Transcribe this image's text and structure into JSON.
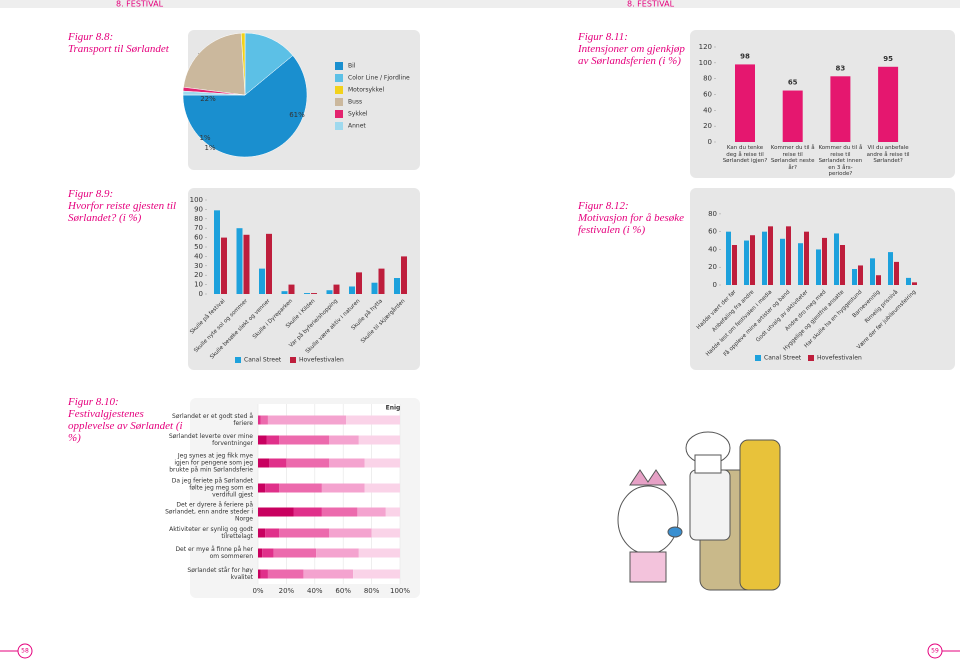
{
  "header": {
    "left": "8. FESTIVAL",
    "right": "8. FESTIVAL"
  },
  "page_numbers": [
    "58",
    "59"
  ],
  "chart_data": [
    {
      "type": "pie",
      "figure": "Figur 8.8:",
      "title": "Transport til Sørlandet",
      "categories": [
        "Bil",
        "Color Line / Fjordline",
        "Motorsykkel",
        "Buss",
        "Sykkel",
        "Annet"
      ],
      "values": [
        61,
        14,
        1,
        22,
        1,
        1
      ],
      "value_labels": [
        "61%",
        "14%",
        "1%",
        "22%",
        "1%",
        "1%"
      ],
      "colors": [
        "#1a8fcf",
        "#5cc0e6",
        "#f2d21b",
        "#cbb89d",
        "#e3246f",
        "#9fd9ee"
      ]
    },
    {
      "type": "bar",
      "figure": "Figur 8.11:",
      "title": "Intensjoner om gjenkjøp av Sørlandsferien (i %)",
      "categories": [
        "Kan du tenke deg å reise til Sørlandet igjen?",
        "Kommer du til å reise til Sørlandet neste år?",
        "Kommer du til å reise til Sørlandet innen en 3 års-periode?",
        "Vil du anbefale andre å reise til Sørlandet?"
      ],
      "values": [
        98,
        65,
        83,
        95
      ],
      "color": "#e5176f",
      "ylim": [
        0,
        120
      ],
      "yticks": [
        0,
        20,
        40,
        60,
        80,
        100,
        120
      ]
    },
    {
      "type": "grouped-bar",
      "figure": "Figur 8.9:",
      "title": "Hvorfor reiste gjesten til Sørlandet? (i %)",
      "categories": [
        "Skulle på festival",
        "Skulle nyte sol og sommer",
        "Skulle besøke slekt og venner",
        "Skulle i Dyreparken",
        "Skulle i Kilden",
        "Var på byferie/shopping",
        "Skulle være aktiv i naturen",
        "Skulle på hytta",
        "Skulle til skjærgården"
      ],
      "series": [
        {
          "name": "Canal Street",
          "color": "#1da1dc",
          "values": [
            89,
            70,
            27,
            3,
            1,
            4,
            8,
            12,
            17
          ]
        },
        {
          "name": "Hovefestivalen",
          "color": "#be1e3c",
          "values": [
            60,
            63,
            64,
            10,
            1,
            10,
            23,
            27,
            40
          ]
        }
      ],
      "ylim": [
        0,
        100
      ],
      "yticks": [
        0,
        10,
        20,
        30,
        40,
        50,
        60,
        70,
        80,
        90,
        100
      ]
    },
    {
      "type": "grouped-bar",
      "figure": "Figur 8.12:",
      "title": "Motivasjon for å besøke festivalen (i %)",
      "categories": [
        "Hadde vært der før",
        "Anbefaling fra andre",
        "Hadde lest om festivalen i media",
        "Få oppleve mine artister og band",
        "Godt utvalg av aktiviteter",
        "Andre dro meg med",
        "Hyggelige og gjestfrie ansatte",
        "Har skulle ha en hyggestund",
        "Barnevennlig",
        "Rimelig prisnivå",
        "Være der før jubileumsfeiring"
      ],
      "series": [
        {
          "name": "Canal Street",
          "color": "#1da1dc",
          "values": [
            60,
            50,
            60,
            52,
            47,
            40,
            58,
            18,
            30,
            37,
            8
          ]
        },
        {
          "name": "Hovefestivalen",
          "color": "#be1e3c",
          "values": [
            45,
            56,
            66,
            66,
            60,
            53,
            45,
            22,
            11,
            26,
            3
          ]
        }
      ],
      "ylim": [
        0,
        90
      ],
      "yticks": [
        0,
        20,
        40,
        60,
        80
      ]
    },
    {
      "type": "stacked-bar-h",
      "figure": "Figur 8.10:",
      "title": "Festivalgjestenes opplevelse av Sørlandet (i %)",
      "categories": [
        "Sørlandet er et godt sted å feriere",
        "Sørlandet leverte over mine forventninger",
        "Jeg synes at jeg fikk mye igjen for pengene som jeg brukte på min Sørlandsferie",
        "Da jeg feriete på Sørlandet følte jeg meg som en verdifull gjest",
        "Det er dyrere å feriere på Sørlandet, enn andre steder i Norge",
        "Aktiviteter er synlig og godt tilrettelagt",
        "Det er mye å finne på her om sommeren",
        "Sørlandet står for høy kvalitet"
      ],
      "series": [
        {
          "color": "#c8005f",
          "values": [
            0,
            6,
            8,
            5,
            25,
            5,
            3,
            2
          ]
        },
        {
          "color": "#e0308a",
          "values": [
            2,
            9,
            12,
            10,
            20,
            10,
            8,
            5
          ]
        },
        {
          "color": "#ec6aad",
          "values": [
            5,
            35,
            30,
            30,
            25,
            35,
            30,
            25
          ]
        },
        {
          "color": "#f4a3cf",
          "values": [
            55,
            21,
            25,
            30,
            20,
            30,
            30,
            35
          ]
        },
        {
          "name": "Enig",
          "color": "#fad3e8",
          "values": [
            38,
            29,
            25,
            25,
            10,
            20,
            29,
            33
          ]
        }
      ],
      "xlim": [
        0,
        100
      ],
      "xticks": [
        {
          "value": 0,
          "label": "0%"
        },
        {
          "value": 20,
          "label": "20%"
        },
        {
          "value": 40,
          "label": "40%"
        },
        {
          "value": 60,
          "label": "60%"
        },
        {
          "value": 80,
          "label": "80%"
        },
        {
          "value": 100,
          "label": "100%"
        }
      ]
    }
  ]
}
